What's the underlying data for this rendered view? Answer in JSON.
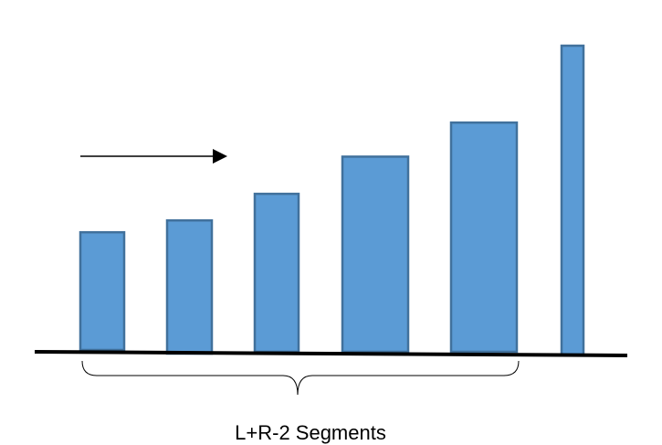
{
  "diagram": {
    "caption": "L+R-2 Segments",
    "bar_count": 6,
    "bar_heights_relative": [
      0.38,
      0.43,
      0.51,
      0.63,
      0.74,
      1.0
    ],
    "colors": {
      "bar_fill": "#5b9bd5",
      "bar_stroke": "#41719c",
      "line": "#000000"
    },
    "elements": [
      "bars",
      "baseline",
      "direction-arrow",
      "curly-brace",
      "caption"
    ]
  }
}
